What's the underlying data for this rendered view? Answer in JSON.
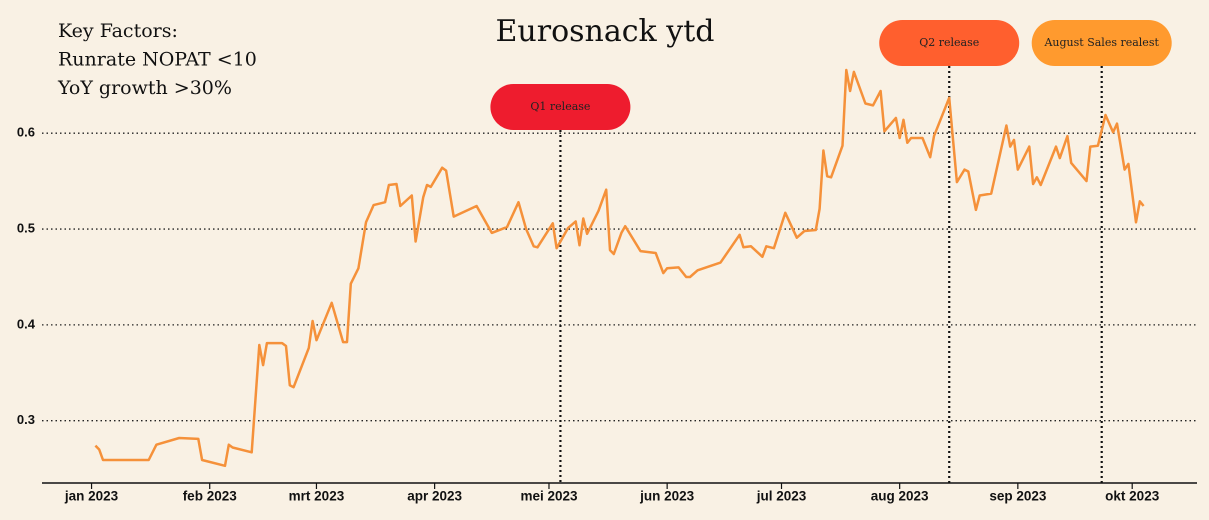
{
  "chart_data": {
    "type": "line",
    "title": "Eurosnack ytd",
    "annotations": [
      "Key Factors:",
      "Runrate NOPAT <10",
      "YoY growth >30%"
    ],
    "x": [
      "2023-01-02",
      "2023-01-03",
      "2023-01-04",
      "2023-01-16",
      "2023-01-18",
      "2023-01-24",
      "2023-01-29",
      "2023-01-30",
      "2023-02-05",
      "2023-02-06",
      "2023-02-07",
      "2023-02-12",
      "2023-02-14",
      "2023-02-15",
      "2023-02-16",
      "2023-02-20",
      "2023-02-21",
      "2023-02-22",
      "2023-02-23",
      "2023-02-27",
      "2023-02-28",
      "2023-03-01",
      "2023-03-05",
      "2023-03-08",
      "2023-03-09",
      "2023-03-10",
      "2023-03-12",
      "2023-03-14",
      "2023-03-16",
      "2023-03-19",
      "2023-03-20",
      "2023-03-22",
      "2023-03-23",
      "2023-03-26",
      "2023-03-27",
      "2023-03-29",
      "2023-03-30",
      "2023-03-31",
      "2023-04-03",
      "2023-04-04",
      "2023-04-06",
      "2023-04-12",
      "2023-04-16",
      "2023-04-20",
      "2023-04-23",
      "2023-04-25",
      "2023-04-27",
      "2023-04-28",
      "2023-05-02",
      "2023-05-03",
      "2023-05-06",
      "2023-05-08",
      "2023-05-09",
      "2023-05-10",
      "2023-05-11",
      "2023-05-14",
      "2023-05-16",
      "2023-05-17",
      "2023-05-18",
      "2023-05-20",
      "2023-05-21",
      "2023-05-25",
      "2023-05-29",
      "2023-05-31",
      "2023-06-01",
      "2023-06-04",
      "2023-06-06",
      "2023-06-07",
      "2023-06-09",
      "2023-06-15",
      "2023-06-20",
      "2023-06-21",
      "2023-06-23",
      "2023-06-26",
      "2023-06-27",
      "2023-06-29",
      "2023-07-02",
      "2023-07-05",
      "2023-07-07",
      "2023-07-10",
      "2023-07-11",
      "2023-07-12",
      "2023-07-13",
      "2023-07-14",
      "2023-07-17",
      "2023-07-18",
      "2023-07-19",
      "2023-07-20",
      "2023-07-23",
      "2023-07-25",
      "2023-07-27",
      "2023-07-28",
      "2023-07-31",
      "2023-08-01",
      "2023-08-02",
      "2023-08-03",
      "2023-08-04",
      "2023-08-07",
      "2023-08-09",
      "2023-08-10",
      "2023-08-14",
      "2023-08-16",
      "2023-08-18",
      "2023-08-19",
      "2023-08-21",
      "2023-08-22",
      "2023-08-25",
      "2023-08-29",
      "2023-08-30",
      "2023-08-31",
      "2023-09-01",
      "2023-09-04",
      "2023-09-05",
      "2023-09-06",
      "2023-09-07",
      "2023-09-11",
      "2023-09-12",
      "2023-09-14",
      "2023-09-15",
      "2023-09-19",
      "2023-09-20",
      "2023-09-22",
      "2023-09-24",
      "2023-09-26",
      "2023-09-27",
      "2023-09-29",
      "2023-09-30",
      "2023-10-02",
      "2023-10-03",
      "2023-10-04"
    ],
    "series": [
      {
        "color": "#f5913a",
        "values": [
          0.274,
          0.27,
          0.259,
          0.259,
          0.275,
          0.282,
          0.281,
          0.259,
          0.253,
          0.275,
          0.272,
          0.267,
          0.379,
          0.358,
          0.381,
          0.381,
          0.378,
          0.337,
          0.335,
          0.376,
          0.404,
          0.384,
          0.423,
          0.382,
          0.382,
          0.443,
          0.459,
          0.507,
          0.525,
          0.528,
          0.546,
          0.547,
          0.524,
          0.535,
          0.487,
          0.533,
          0.546,
          0.544,
          0.564,
          0.561,
          0.513,
          0.524,
          0.496,
          0.502,
          0.528,
          0.5,
          0.482,
          0.481,
          0.506,
          0.48,
          0.501,
          0.508,
          0.483,
          0.511,
          0.495,
          0.519,
          0.541,
          0.478,
          0.474,
          0.496,
          0.503,
          0.477,
          0.475,
          0.454,
          0.459,
          0.46,
          0.45,
          0.45,
          0.457,
          0.465,
          0.494,
          0.481,
          0.482,
          0.471,
          0.482,
          0.48,
          0.517,
          0.491,
          0.498,
          0.499,
          0.521,
          0.582,
          0.555,
          0.554,
          0.587,
          0.666,
          0.644,
          0.664,
          0.631,
          0.629,
          0.644,
          0.602,
          0.616,
          0.595,
          0.614,
          0.59,
          0.595,
          0.595,
          0.575,
          0.597,
          0.637,
          0.549,
          0.562,
          0.56,
          0.52,
          0.535,
          0.537,
          0.608,
          0.586,
          0.593,
          0.562,
          0.586,
          0.547,
          0.554,
          0.546,
          0.586,
          0.574,
          0.597,
          0.569,
          0.55,
          0.586,
          0.587,
          0.619,
          0.601,
          0.61,
          0.562,
          0.568,
          0.507,
          0.529,
          0.524
        ]
      }
    ],
    "events": [
      {
        "label": "Q1 release",
        "x": "2023-05-04",
        "color": "#ee1c2e"
      },
      {
        "label": "Q2 release",
        "x": "2023-08-14",
        "color": "#ff5f2e"
      },
      {
        "label": "August Sales realest",
        "x": "2023-09-23",
        "color": "#ff9a2e"
      }
    ],
    "xlim": [
      "2022-12-19",
      "2023-10-18"
    ],
    "xticks": [
      {
        "value": "2023-01-01",
        "label": "jan 2023"
      },
      {
        "value": "2023-02-01",
        "label": "feb 2023"
      },
      {
        "value": "2023-03-01",
        "label": "mrt 2023"
      },
      {
        "value": "2023-04-01",
        "label": "apr 2023"
      },
      {
        "value": "2023-05-01",
        "label": "mei 2023"
      },
      {
        "value": "2023-06-01",
        "label": "jun 2023"
      },
      {
        "value": "2023-07-01",
        "label": "jul 2023"
      },
      {
        "value": "2023-08-01",
        "label": "aug 2023"
      },
      {
        "value": "2023-09-01",
        "label": "sep 2023"
      },
      {
        "value": "2023-10-01",
        "label": "okt 2023"
      }
    ],
    "ylim": [
      0.235,
      0.739
    ],
    "yticks": [
      0.3,
      0.4,
      0.5,
      0.6
    ],
    "grid": true
  }
}
